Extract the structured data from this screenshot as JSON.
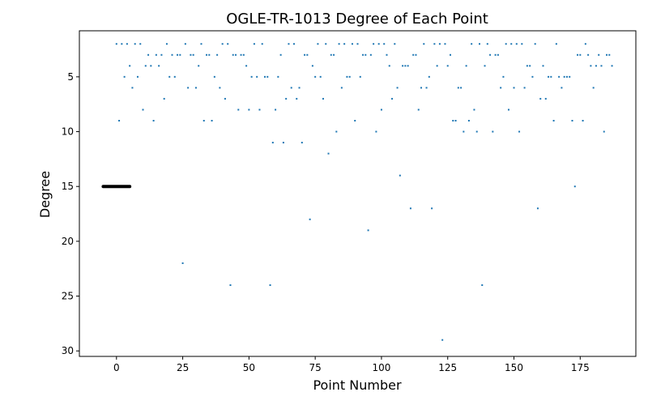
{
  "chart_data": {
    "type": "scatter",
    "title": "OGLE-TR-1013 Degree of Each Point",
    "xlabel": "Point Number",
    "ylabel": "Degree",
    "xlim": [
      -14,
      196
    ],
    "ylim": [
      30.5,
      0.8
    ],
    "y_inverted": true,
    "grid": false,
    "x_ticks": [
      0,
      25,
      50,
      75,
      100,
      125,
      150,
      175
    ],
    "y_ticks": [
      5,
      10,
      15,
      20,
      25,
      30
    ],
    "colors": {
      "points": "#1f77b4",
      "highlight": "#000000"
    },
    "highlight": {
      "x": [
        -5,
        5
      ],
      "y": 15
    },
    "points": [
      [
        0,
        2
      ],
      [
        1,
        9
      ],
      [
        2,
        2
      ],
      [
        3,
        5
      ],
      [
        4,
        2
      ],
      [
        5,
        4
      ],
      [
        6,
        6
      ],
      [
        7,
        2
      ],
      [
        8,
        5
      ],
      [
        9,
        2
      ],
      [
        10,
        8
      ],
      [
        11,
        4
      ],
      [
        12,
        3
      ],
      [
        13,
        4
      ],
      [
        14,
        9
      ],
      [
        15,
        3
      ],
      [
        16,
        4
      ],
      [
        17,
        3
      ],
      [
        18,
        7
      ],
      [
        19,
        2
      ],
      [
        20,
        5
      ],
      [
        21,
        3
      ],
      [
        22,
        5
      ],
      [
        23,
        3
      ],
      [
        24,
        3
      ],
      [
        25,
        22
      ],
      [
        26,
        2
      ],
      [
        27,
        6
      ],
      [
        28,
        3
      ],
      [
        29,
        3
      ],
      [
        30,
        6
      ],
      [
        31,
        4
      ],
      [
        32,
        2
      ],
      [
        33,
        9
      ],
      [
        34,
        3
      ],
      [
        35,
        3
      ],
      [
        36,
        9
      ],
      [
        37,
        5
      ],
      [
        38,
        3
      ],
      [
        39,
        6
      ],
      [
        40,
        2
      ],
      [
        41,
        7
      ],
      [
        42,
        2
      ],
      [
        43,
        24
      ],
      [
        44,
        3
      ],
      [
        45,
        3
      ],
      [
        46,
        8
      ],
      [
        47,
        3
      ],
      [
        48,
        3
      ],
      [
        49,
        4
      ],
      [
        50,
        8
      ],
      [
        51,
        5
      ],
      [
        52,
        2
      ],
      [
        53,
        5
      ],
      [
        54,
        8
      ],
      [
        55,
        2
      ],
      [
        56,
        5
      ],
      [
        57,
        5
      ],
      [
        58,
        24
      ],
      [
        59,
        11
      ],
      [
        60,
        8
      ],
      [
        61,
        5
      ],
      [
        62,
        3
      ],
      [
        63,
        11
      ],
      [
        64,
        7
      ],
      [
        65,
        2
      ],
      [
        66,
        6
      ],
      [
        67,
        2
      ],
      [
        68,
        7
      ],
      [
        69,
        6
      ],
      [
        70,
        11
      ],
      [
        71,
        3
      ],
      [
        72,
        3
      ],
      [
        73,
        18
      ],
      [
        74,
        4
      ],
      [
        75,
        5
      ],
      [
        76,
        2
      ],
      [
        77,
        5
      ],
      [
        78,
        7
      ],
      [
        79,
        2
      ],
      [
        80,
        12
      ],
      [
        81,
        3
      ],
      [
        82,
        3
      ],
      [
        83,
        10
      ],
      [
        84,
        2
      ],
      [
        85,
        6
      ],
      [
        86,
        2
      ],
      [
        87,
        5
      ],
      [
        88,
        5
      ],
      [
        89,
        2
      ],
      [
        90,
        9
      ],
      [
        91,
        2
      ],
      [
        92,
        5
      ],
      [
        93,
        3
      ],
      [
        94,
        3
      ],
      [
        95,
        19
      ],
      [
        96,
        3
      ],
      [
        97,
        2
      ],
      [
        98,
        10
      ],
      [
        99,
        2
      ],
      [
        100,
        8
      ],
      [
        101,
        2
      ],
      [
        102,
        3
      ],
      [
        103,
        4
      ],
      [
        104,
        7
      ],
      [
        105,
        2
      ],
      [
        106,
        6
      ],
      [
        107,
        14
      ],
      [
        108,
        4
      ],
      [
        109,
        4
      ],
      [
        110,
        4
      ],
      [
        111,
        17
      ],
      [
        112,
        3
      ],
      [
        113,
        3
      ],
      [
        114,
        8
      ],
      [
        115,
        6
      ],
      [
        116,
        2
      ],
      [
        117,
        6
      ],
      [
        118,
        5
      ],
      [
        119,
        17
      ],
      [
        120,
        2
      ],
      [
        121,
        4
      ],
      [
        122,
        2
      ],
      [
        123,
        29
      ],
      [
        124,
        2
      ],
      [
        125,
        4
      ],
      [
        126,
        3
      ],
      [
        127,
        9
      ],
      [
        128,
        9
      ],
      [
        129,
        6
      ],
      [
        130,
        6
      ],
      [
        131,
        10
      ],
      [
        132,
        4
      ],
      [
        133,
        9
      ],
      [
        134,
        2
      ],
      [
        135,
        8
      ],
      [
        136,
        10
      ],
      [
        137,
        2
      ],
      [
        138,
        24
      ],
      [
        139,
        4
      ],
      [
        140,
        2
      ],
      [
        141,
        3
      ],
      [
        142,
        10
      ],
      [
        143,
        3
      ],
      [
        144,
        3
      ],
      [
        145,
        6
      ],
      [
        146,
        5
      ],
      [
        147,
        2
      ],
      [
        148,
        8
      ],
      [
        149,
        2
      ],
      [
        150,
        6
      ],
      [
        151,
        2
      ],
      [
        152,
        10
      ],
      [
        153,
        2
      ],
      [
        154,
        6
      ],
      [
        155,
        4
      ],
      [
        156,
        4
      ],
      [
        157,
        5
      ],
      [
        158,
        2
      ],
      [
        159,
        17
      ],
      [
        160,
        7
      ],
      [
        161,
        4
      ],
      [
        162,
        7
      ],
      [
        163,
        5
      ],
      [
        164,
        5
      ],
      [
        165,
        9
      ],
      [
        166,
        2
      ],
      [
        167,
        5
      ],
      [
        168,
        6
      ],
      [
        169,
        5
      ],
      [
        170,
        5
      ],
      [
        171,
        5
      ],
      [
        172,
        9
      ],
      [
        173,
        15
      ],
      [
        174,
        3
      ],
      [
        175,
        3
      ],
      [
        176,
        9
      ],
      [
        177,
        2
      ],
      [
        178,
        3
      ],
      [
        179,
        4
      ],
      [
        180,
        6
      ],
      [
        181,
        4
      ],
      [
        182,
        3
      ],
      [
        183,
        4
      ],
      [
        184,
        10
      ],
      [
        185,
        3
      ],
      [
        186,
        3
      ],
      [
        187,
        4
      ]
    ]
  }
}
